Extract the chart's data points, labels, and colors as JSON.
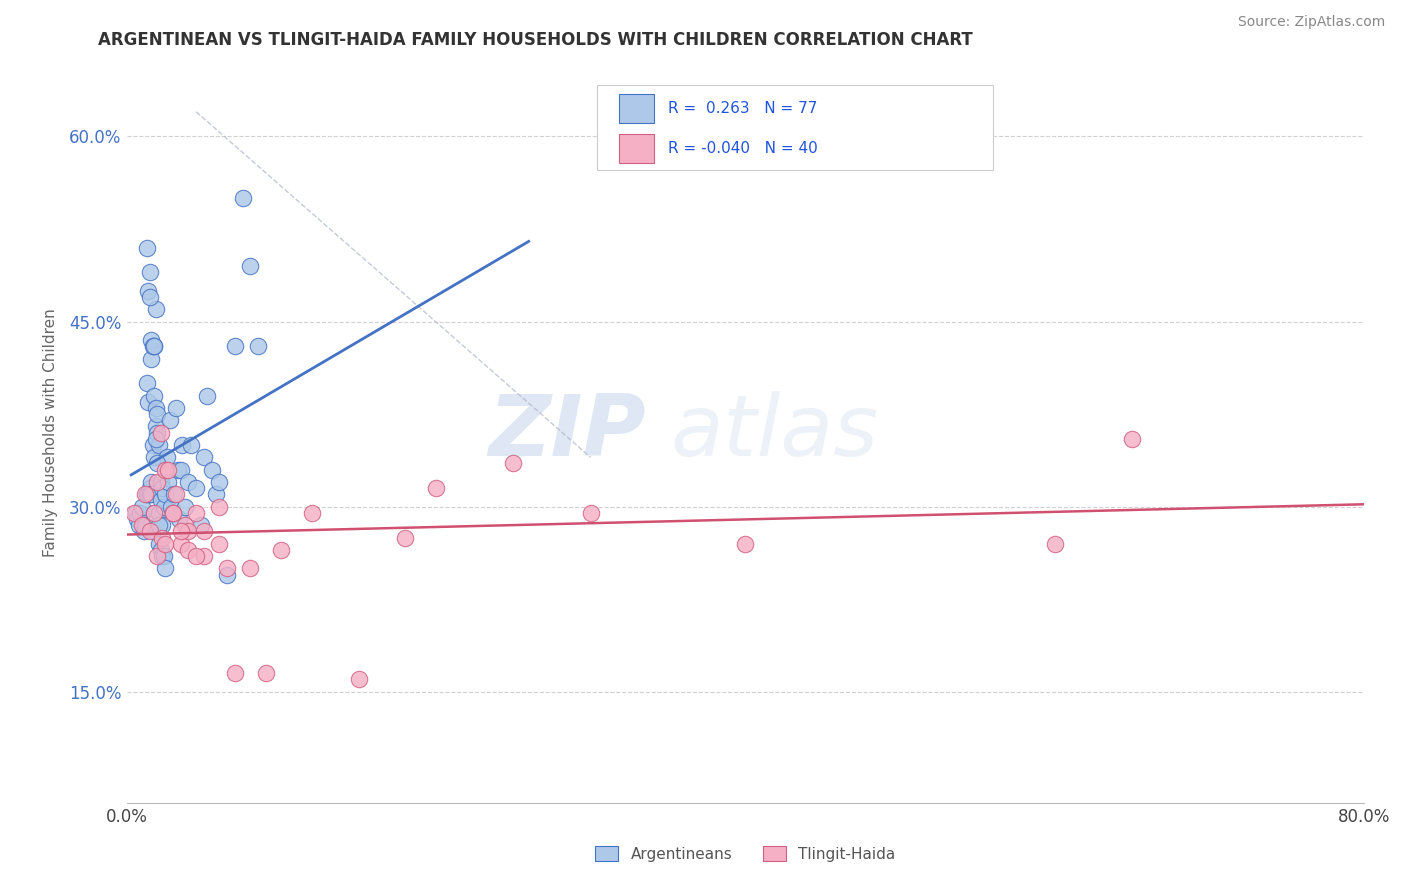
{
  "title": "ARGENTINEAN VS TLINGIT-HAIDA FAMILY HOUSEHOLDS WITH CHILDREN CORRELATION CHART",
  "source": "Source: ZipAtlas.com",
  "ylabel": "Family Households with Children",
  "xlim": [
    0.0,
    0.8
  ],
  "ylim": [
    0.06,
    0.66
  ],
  "ytick_values": [
    0.15,
    0.3,
    0.45,
    0.6
  ],
  "ytick_labels": [
    "15.0%",
    "30.0%",
    "45.0%",
    "60.0%"
  ],
  "xtick_values": [
    0.0,
    0.8
  ],
  "xtick_labels": [
    "0.0%",
    "80.0%"
  ],
  "color_arg_fill": "#adc8e8",
  "color_arg_edge": "#4472c4",
  "color_tl_fill": "#f5b0c5",
  "color_tl_edge": "#d06080",
  "line_arg_color": "#4472c4",
  "line_tl_color": "#d05070",
  "label_arg": "Argentineans",
  "label_tl": "Tlingit-Haida",
  "watermark_zip": "ZIP",
  "watermark_atlas": "atlas",
  "background_color": "#ffffff",
  "arg_x": [
    0.006,
    0.007,
    0.008,
    0.009,
    0.01,
    0.011,
    0.012,
    0.013,
    0.013,
    0.014,
    0.014,
    0.015,
    0.015,
    0.015,
    0.016,
    0.016,
    0.016,
    0.017,
    0.017,
    0.018,
    0.018,
    0.018,
    0.018,
    0.019,
    0.019,
    0.019,
    0.02,
    0.02,
    0.02,
    0.021,
    0.021,
    0.021,
    0.022,
    0.022,
    0.022,
    0.023,
    0.023,
    0.023,
    0.024,
    0.024,
    0.025,
    0.025,
    0.026,
    0.027,
    0.028,
    0.029,
    0.03,
    0.031,
    0.032,
    0.033,
    0.034,
    0.035,
    0.036,
    0.038,
    0.04,
    0.042,
    0.045,
    0.048,
    0.05,
    0.052,
    0.055,
    0.058,
    0.06,
    0.065,
    0.07,
    0.075,
    0.08,
    0.085,
    0.013,
    0.014,
    0.015,
    0.016,
    0.017,
    0.018,
    0.019,
    0.02,
    0.021
  ],
  "arg_y": [
    0.295,
    0.29,
    0.285,
    0.295,
    0.3,
    0.28,
    0.285,
    0.4,
    0.31,
    0.385,
    0.31,
    0.315,
    0.49,
    0.31,
    0.32,
    0.42,
    0.31,
    0.28,
    0.35,
    0.34,
    0.39,
    0.295,
    0.43,
    0.38,
    0.365,
    0.46,
    0.29,
    0.36,
    0.375,
    0.295,
    0.35,
    0.27,
    0.32,
    0.305,
    0.265,
    0.315,
    0.26,
    0.285,
    0.3,
    0.26,
    0.31,
    0.25,
    0.34,
    0.32,
    0.37,
    0.3,
    0.295,
    0.31,
    0.38,
    0.33,
    0.29,
    0.33,
    0.35,
    0.3,
    0.32,
    0.35,
    0.315,
    0.285,
    0.34,
    0.39,
    0.33,
    0.31,
    0.32,
    0.245,
    0.43,
    0.55,
    0.495,
    0.43,
    0.51,
    0.475,
    0.47,
    0.435,
    0.43,
    0.43,
    0.355,
    0.335,
    0.285
  ],
  "tl_x": [
    0.005,
    0.01,
    0.012,
    0.015,
    0.018,
    0.02,
    0.022,
    0.023,
    0.025,
    0.027,
    0.03,
    0.032,
    0.035,
    0.038,
    0.04,
    0.045,
    0.05,
    0.06,
    0.065,
    0.07,
    0.08,
    0.09,
    0.1,
    0.12,
    0.15,
    0.18,
    0.2,
    0.25,
    0.3,
    0.4,
    0.6,
    0.65,
    0.02,
    0.025,
    0.03,
    0.035,
    0.04,
    0.045,
    0.05,
    0.06
  ],
  "tl_y": [
    0.295,
    0.285,
    0.31,
    0.28,
    0.295,
    0.32,
    0.36,
    0.275,
    0.33,
    0.33,
    0.295,
    0.31,
    0.27,
    0.285,
    0.28,
    0.295,
    0.26,
    0.3,
    0.25,
    0.165,
    0.25,
    0.165,
    0.265,
    0.295,
    0.16,
    0.275,
    0.315,
    0.335,
    0.295,
    0.27,
    0.27,
    0.355,
    0.26,
    0.27,
    0.295,
    0.28,
    0.265,
    0.26,
    0.28,
    0.27
  ],
  "dash_line_x": [
    0.045,
    0.3
  ],
  "dash_line_y": [
    0.62,
    0.34
  ]
}
